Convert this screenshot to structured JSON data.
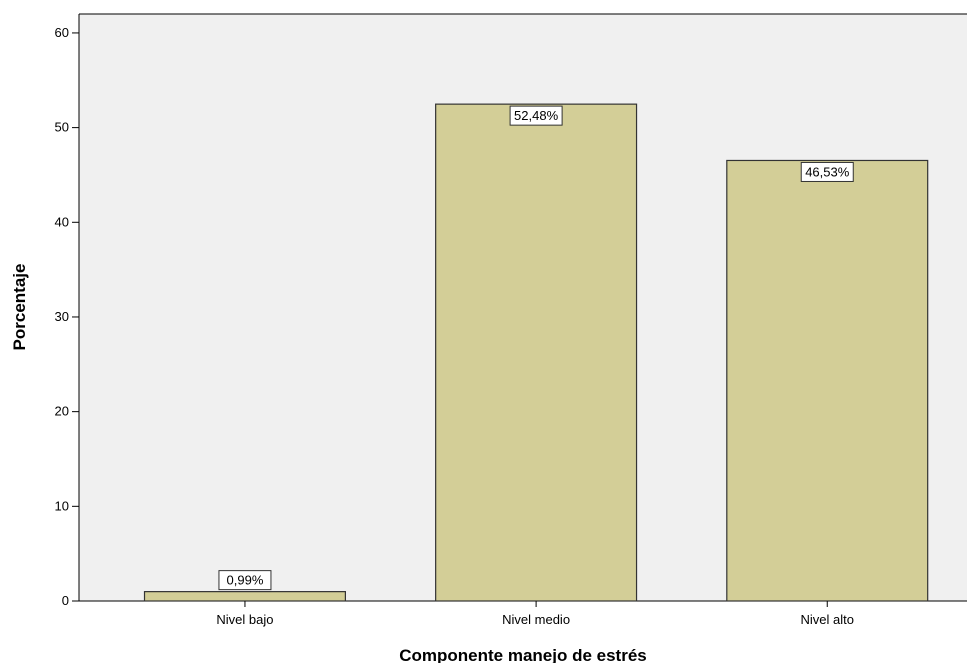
{
  "chart_data": {
    "type": "bar",
    "categories": [
      "Nivel bajo",
      "Nivel medio",
      "Nivel alto"
    ],
    "values": [
      0.99,
      52.48,
      46.53
    ],
    "data_labels": [
      "0,99%",
      "52,48%",
      "46,53%"
    ],
    "xlabel": "Componente manejo de estrés",
    "ylabel": "Porcentaje",
    "ylim": [
      0,
      62
    ],
    "yticks": [
      0,
      10,
      20,
      30,
      40,
      50,
      60
    ],
    "ytick_labels": [
      "0",
      "10",
      "20",
      "30",
      "40",
      "50",
      "60"
    ],
    "grid": false,
    "legend": "none",
    "colors": {
      "bar_fill": "#d3ce97",
      "bar_stroke": "#333333",
      "plot_background": "#f0f0f0",
      "axis": "#000000",
      "label_box_fill": "#ffffff"
    }
  }
}
